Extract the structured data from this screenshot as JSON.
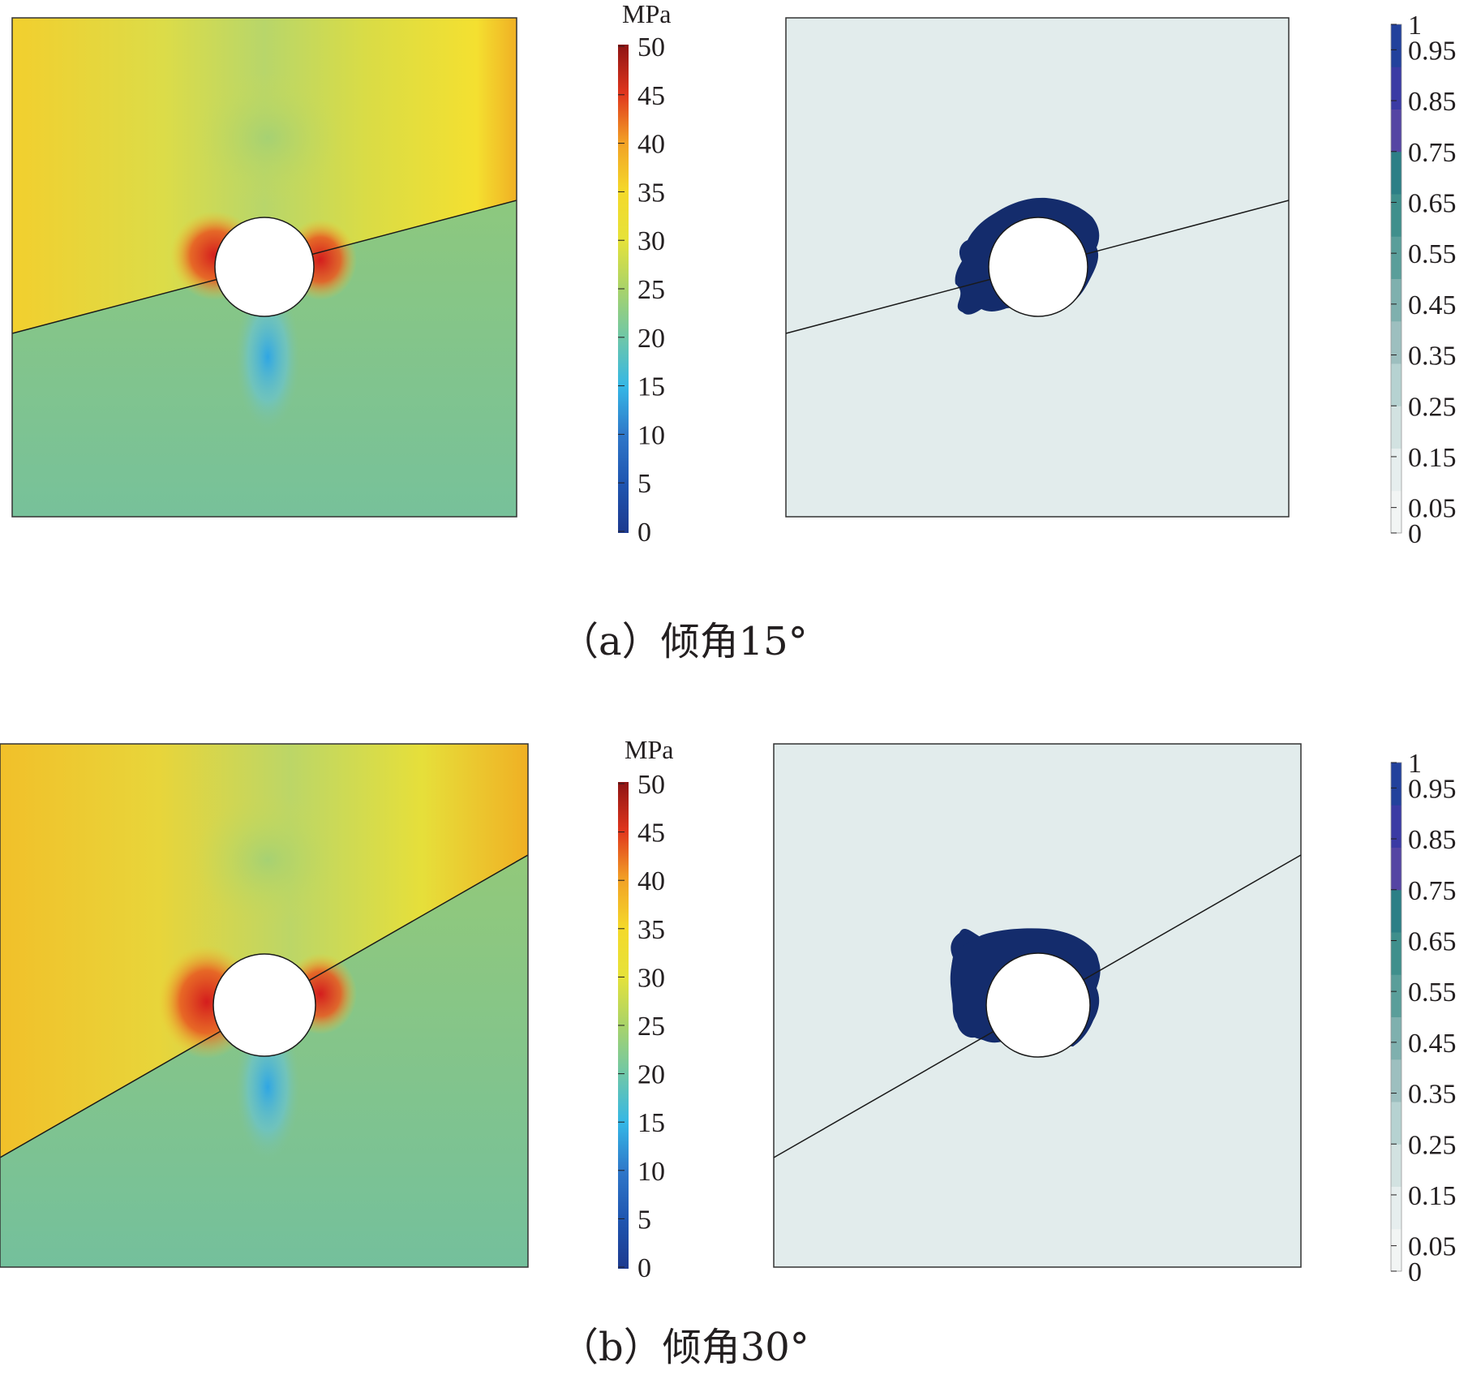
{
  "figure": {
    "panels": [
      {
        "id": "a",
        "caption": "（a）倾角15°",
        "dip_angle_deg": 15,
        "stress_colorbar": {
          "unit": "MPa",
          "ticks": [
            "0",
            "5",
            "10",
            "15",
            "20",
            "25",
            "30",
            "35",
            "40",
            "45",
            "50"
          ]
        },
        "damage_colorbar": {
          "ticks": [
            "0",
            "0.05",
            "0.15",
            "0.25",
            "0.35",
            "0.45",
            "0.55",
            "0.65",
            "0.75",
            "0.85",
            "0.95",
            "1"
          ]
        }
      },
      {
        "id": "b",
        "caption": "（b）倾角30°",
        "dip_angle_deg": 30,
        "stress_colorbar": {
          "unit": "MPa",
          "ticks": [
            "0",
            "5",
            "10",
            "15",
            "20",
            "25",
            "30",
            "35",
            "40",
            "45",
            "50"
          ]
        },
        "damage_colorbar": {
          "ticks": [
            "0",
            "0.05",
            "0.15",
            "0.25",
            "0.35",
            "0.45",
            "0.55",
            "0.65",
            "0.75",
            "0.85",
            "0.95",
            "1"
          ]
        }
      }
    ],
    "colors": {
      "stress_gradient": [
        "#1d3a8f",
        "#2f77c9",
        "#35b7e6",
        "#6fc7a8",
        "#a9d36a",
        "#d9e23a",
        "#f4d92a",
        "#f2a126",
        "#e4501f",
        "#d21c1d",
        "#8e1414"
      ],
      "damage_gradient": [
        "#f2f5f4",
        "#dde8e7",
        "#9dbfbf",
        "#4e9c97",
        "#2a7d85",
        "#5b45a3",
        "#3d34a0",
        "#1c3b97",
        "#142c6c"
      ],
      "upper_block": "#f0d234",
      "lower_block": "#7ac38f",
      "damage_background": "#e2ecec",
      "damage_zone": "#142c6c"
    }
  }
}
